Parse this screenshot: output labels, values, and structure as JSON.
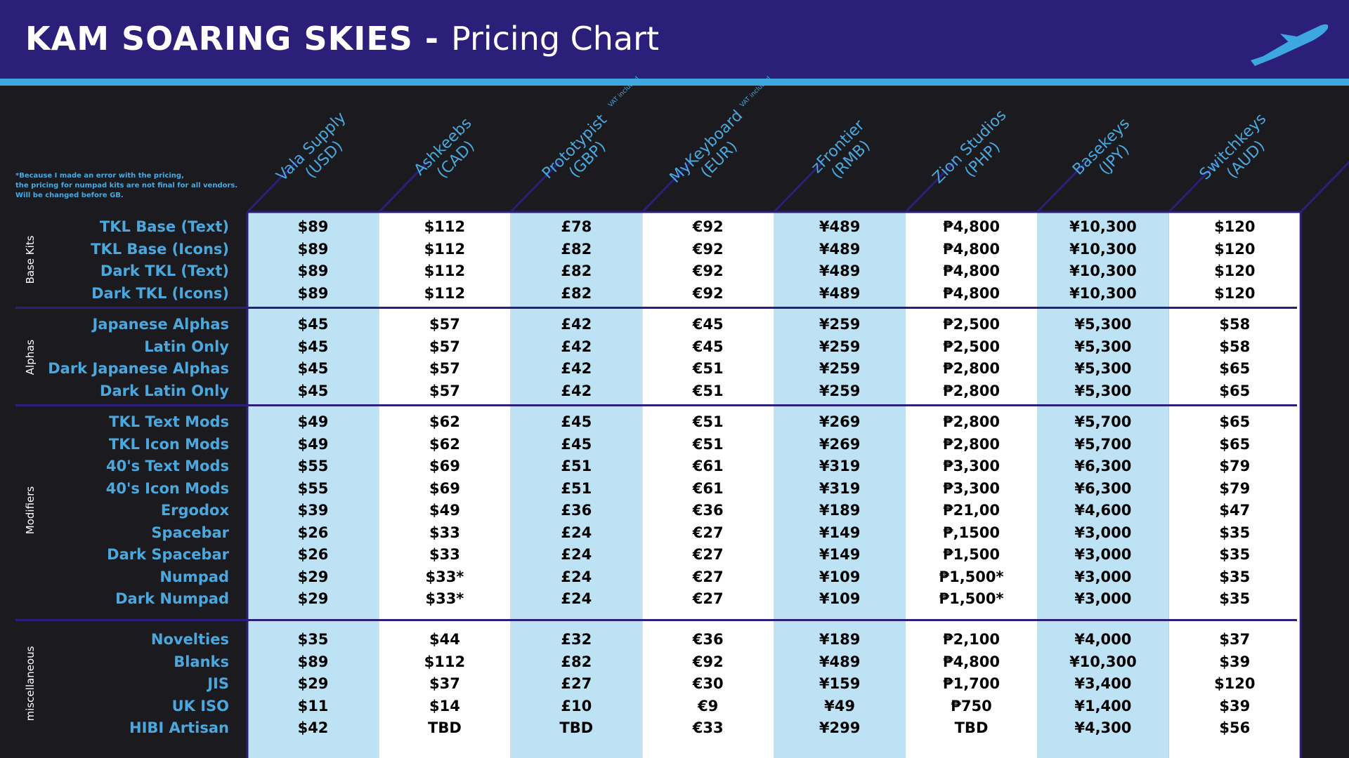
{
  "header": {
    "brand": "KAM SOARING SKIES",
    "separator": " - ",
    "subtitle": "Pricing Chart",
    "logo_icon": "airplane-icon"
  },
  "note": [
    "*Because I made an error with the pricing,",
    "the pricing for numpad kits are not final for all vendors.",
    "Will be changed before GB."
  ],
  "colors": {
    "header_bg": "#2b1f7a",
    "accent": "#3da7e0",
    "text_accent": "#4aa8df",
    "col_light": "#bde2f3",
    "col_white": "#ffffff",
    "page_bg": "#1b1b1f"
  },
  "vendors": [
    {
      "name": "Vala Supply",
      "currency": "(USD)",
      "vat": ""
    },
    {
      "name": "Ashkeebs",
      "currency": "(CAD)",
      "vat": ""
    },
    {
      "name": "Prototypist",
      "currency": "(GBP)",
      "vat": "VAT included"
    },
    {
      "name": "MyKeyboard",
      "currency": "(EUR)",
      "vat": "VAT included"
    },
    {
      "name": "zFrontier",
      "currency": "(RMB)",
      "vat": ""
    },
    {
      "name": "Zion Studios",
      "currency": "(PHP)",
      "vat": ""
    },
    {
      "name": "Basekeys",
      "currency": "(JPY)",
      "vat": ""
    },
    {
      "name": "Switchkeys",
      "currency": "(AUD)",
      "vat": ""
    }
  ],
  "sections": [
    {
      "label": "Base Kits",
      "rows": [
        {
          "item": "TKL Base (Text)",
          "prices": [
            "$89",
            "$112",
            "£78",
            "€92",
            "¥489",
            "₱4,800",
            "¥10,300",
            "$120"
          ]
        },
        {
          "item": "TKL Base (Icons)",
          "prices": [
            "$89",
            "$112",
            "£82",
            "€92",
            "¥489",
            "₱4,800",
            "¥10,300",
            "$120"
          ]
        },
        {
          "item": "Dark TKL (Text)",
          "prices": [
            "$89",
            "$112",
            "£82",
            "€92",
            "¥489",
            "₱4,800",
            "¥10,300",
            "$120"
          ]
        },
        {
          "item": "Dark TKL (Icons)",
          "prices": [
            "$89",
            "$112",
            "£82",
            "€92",
            "¥489",
            "₱4,800",
            "¥10,300",
            "$120"
          ]
        }
      ]
    },
    {
      "label": "Alphas",
      "rows": [
        {
          "item": "Japanese Alphas",
          "prices": [
            "$45",
            "$57",
            "£42",
            "€45",
            "¥259",
            "₱2,500",
            "¥5,300",
            "$58"
          ]
        },
        {
          "item": "Latin Only",
          "prices": [
            "$45",
            "$57",
            "£42",
            "€45",
            "¥259",
            "₱2,500",
            "¥5,300",
            "$58"
          ]
        },
        {
          "item": "Dark Japanese Alphas",
          "prices": [
            "$45",
            "$57",
            "£42",
            "€51",
            "¥259",
            "₱2,800",
            "¥5,300",
            "$65"
          ]
        },
        {
          "item": "Dark Latin Only",
          "prices": [
            "$45",
            "$57",
            "£42",
            "€51",
            "¥259",
            "₱2,800",
            "¥5,300",
            "$65"
          ]
        }
      ]
    },
    {
      "label": "Modifiers",
      "rows": [
        {
          "item": "TKL Text Mods",
          "prices": [
            "$49",
            "$62",
            "£45",
            "€51",
            "¥269",
            "₱2,800",
            "¥5,700",
            "$65"
          ]
        },
        {
          "item": "TKL Icon Mods",
          "prices": [
            "$49",
            "$62",
            "£45",
            "€51",
            "¥269",
            "₱2,800",
            "¥5,700",
            "$65"
          ]
        },
        {
          "item": "40's Text Mods",
          "prices": [
            "$55",
            "$69",
            "£51",
            "€61",
            "¥319",
            "₱3,300",
            "¥6,300",
            "$79"
          ]
        },
        {
          "item": "40's Icon Mods",
          "prices": [
            "$55",
            "$69",
            "£51",
            "€61",
            "¥319",
            "₱3,300",
            "¥6,300",
            "$79"
          ]
        },
        {
          "item": "Ergodox",
          "prices": [
            "$39",
            "$49",
            "£36",
            "€36",
            "¥189",
            "₱21,00",
            "¥4,600",
            "$47"
          ]
        },
        {
          "item": "Spacebar",
          "prices": [
            "$26",
            "$33",
            "£24",
            "€27",
            "¥149",
            "₱,1500",
            "¥3,000",
            "$35"
          ]
        },
        {
          "item": "Dark Spacebar",
          "prices": [
            "$26",
            "$33",
            "£24",
            "€27",
            "¥149",
            "₱1,500",
            "¥3,000",
            "$35"
          ]
        },
        {
          "item": "Numpad",
          "prices": [
            "$29",
            "$33*",
            "£24",
            "€27",
            "¥109",
            "₱1,500*",
            "¥3,000",
            "$35"
          ]
        },
        {
          "item": "Dark Numpad",
          "prices": [
            "$29",
            "$33*",
            "£24",
            "€27",
            "¥109",
            "₱1,500*",
            "¥3,000",
            "$35"
          ]
        }
      ]
    },
    {
      "label": "miscellaneous",
      "rows": [
        {
          "item": "Novelties",
          "prices": [
            "$35",
            "$44",
            "£32",
            "€36",
            "¥189",
            "₱2,100",
            "¥4,000",
            "$37"
          ]
        },
        {
          "item": "Blanks",
          "prices": [
            "$89",
            "$112",
            "£82",
            "€92",
            "¥489",
            "₱4,800",
            "¥10,300",
            "$39"
          ]
        },
        {
          "item": "JIS",
          "prices": [
            "$29",
            "$37",
            "£27",
            "€30",
            "¥159",
            "₱1,700",
            "¥3,400",
            "$120"
          ]
        },
        {
          "item": "UK ISO",
          "prices": [
            "$11",
            "$14",
            "£10",
            "€9",
            "¥49",
            "₱750",
            "¥1,400",
            "$39"
          ]
        },
        {
          "item": "HIBI Artisan",
          "prices": [
            "$42",
            "TBD",
            "TBD",
            "€33",
            "¥299",
            "TBD",
            "¥4,300",
            "$56"
          ]
        }
      ]
    }
  ]
}
